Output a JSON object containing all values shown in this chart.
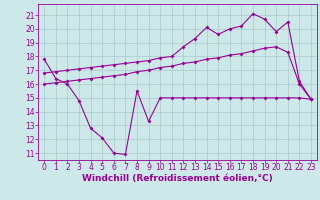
{
  "background_color": "#cce8e8",
  "line_color": "#990099",
  "grid_color": "#aacccc",
  "xlabel": "Windchill (Refroidissement éolien,°C)",
  "xlabel_fontsize": 6.5,
  "yticks": [
    11,
    12,
    13,
    14,
    15,
    16,
    17,
    18,
    19,
    20,
    21
  ],
  "xticks": [
    0,
    1,
    2,
    3,
    4,
    5,
    6,
    7,
    8,
    9,
    10,
    11,
    12,
    13,
    14,
    15,
    16,
    17,
    18,
    19,
    20,
    21,
    22,
    23
  ],
  "ylim": [
    10.5,
    21.8
  ],
  "xlim": [
    -0.5,
    23.5
  ],
  "series1_x": [
    0,
    1,
    2,
    3,
    4,
    5,
    6,
    7,
    8,
    9,
    10,
    11,
    12,
    13,
    14,
    15,
    16,
    17,
    18,
    19,
    20,
    21,
    22,
    23
  ],
  "series1_y": [
    17.8,
    16.4,
    16.0,
    14.8,
    12.8,
    12.1,
    11.0,
    10.9,
    15.5,
    13.3,
    15.0,
    15.0,
    15.0,
    15.0,
    15.0,
    15.0,
    15.0,
    15.0,
    15.0,
    15.0,
    15.0,
    15.0,
    15.0,
    14.9
  ],
  "series2_x": [
    0,
    1,
    2,
    3,
    4,
    5,
    6,
    7,
    8,
    9,
    10,
    11,
    12,
    13,
    14,
    15,
    16,
    17,
    18,
    19,
    20,
    21,
    22,
    23
  ],
  "series2_y": [
    16.0,
    16.1,
    16.2,
    16.3,
    16.4,
    16.5,
    16.6,
    16.7,
    16.9,
    17.0,
    17.2,
    17.3,
    17.5,
    17.6,
    17.8,
    17.9,
    18.1,
    18.2,
    18.4,
    18.6,
    18.7,
    18.3,
    16.0,
    14.9
  ],
  "series3_x": [
    0,
    1,
    2,
    3,
    4,
    5,
    6,
    7,
    8,
    9,
    10,
    11,
    12,
    13,
    14,
    15,
    16,
    17,
    18,
    19,
    20,
    21,
    22,
    23
  ],
  "series3_y": [
    16.8,
    16.9,
    17.0,
    17.1,
    17.2,
    17.3,
    17.4,
    17.5,
    17.6,
    17.7,
    17.9,
    18.0,
    18.7,
    19.3,
    20.1,
    19.6,
    20.0,
    20.2,
    21.1,
    20.7,
    19.8,
    20.5,
    16.2,
    14.9
  ],
  "tick_fontsize": 5.5,
  "marker": "D",
  "markersize": 2.0,
  "linewidth": 0.8
}
